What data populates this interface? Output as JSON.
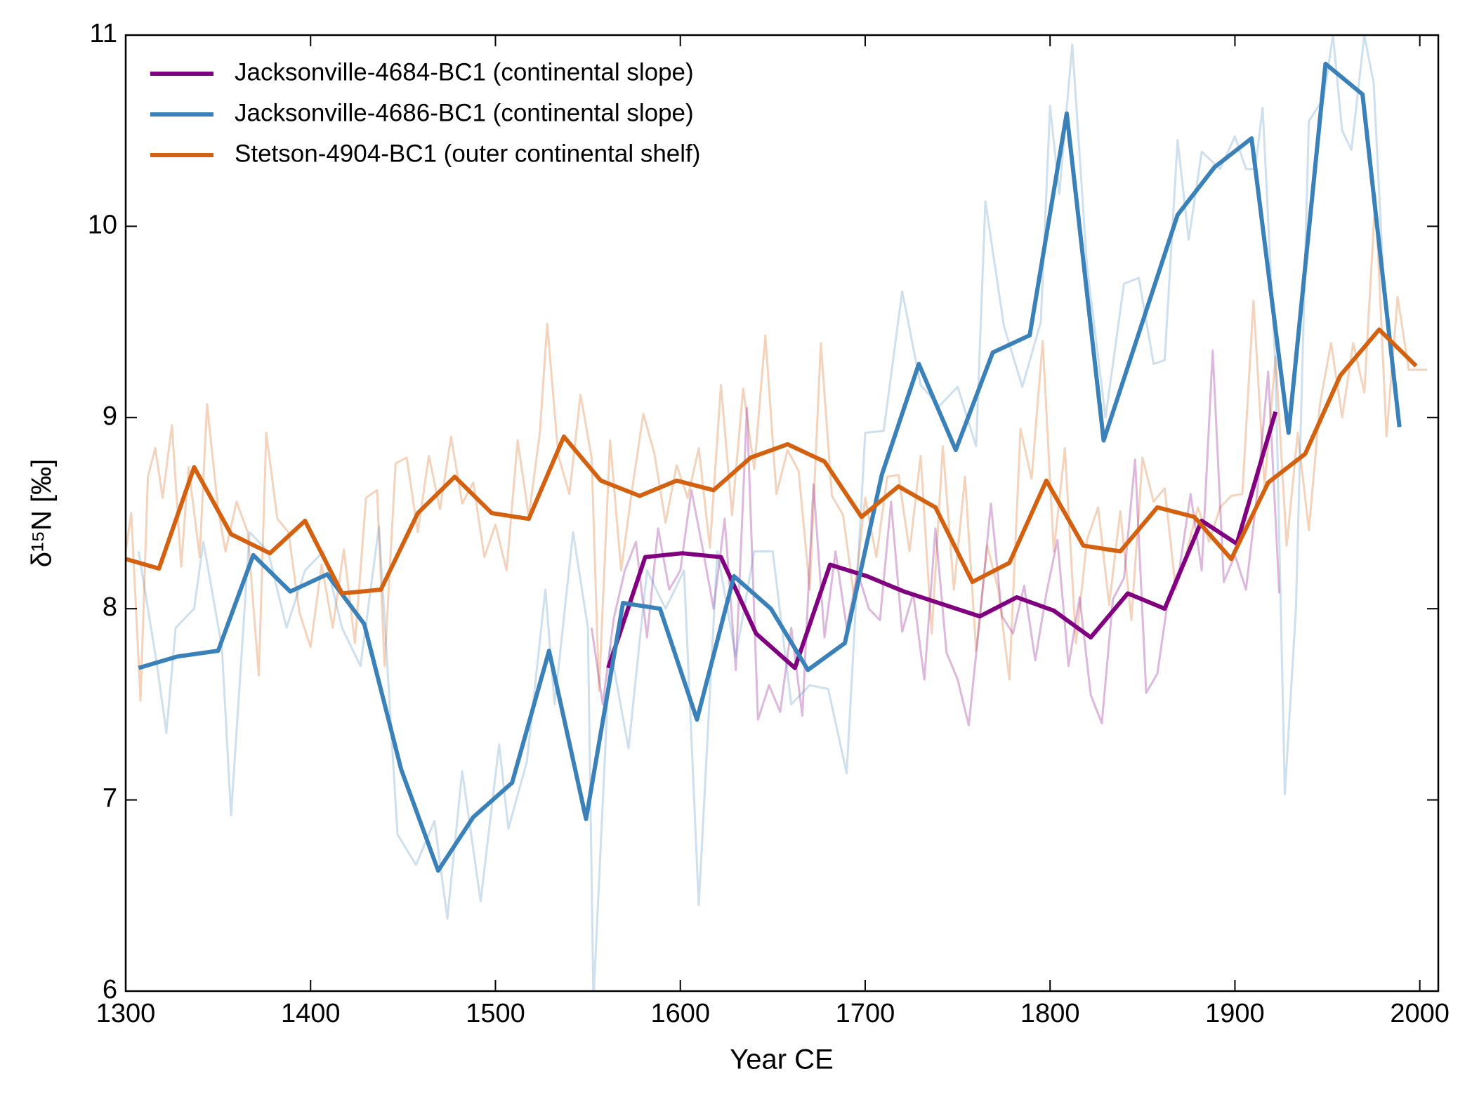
{
  "chart_data": {
    "type": "line",
    "xlabel": "Year CE",
    "ylabel": "δ¹⁵N [‰]",
    "xlim": [
      1300,
      2010
    ],
    "ylim": [
      6,
      11
    ],
    "xticks": [
      1300,
      1400,
      1500,
      1600,
      1700,
      1800,
      1900,
      2000
    ],
    "yticks": [
      6,
      7,
      8,
      9,
      10,
      11
    ],
    "legend": "upper left",
    "series": [
      {
        "name": "Jacksonville-4684-BC1 (continental slope)",
        "color": "#800080",
        "x": [
          1561,
          1581,
          1601,
          1622,
          1641,
          1662,
          1681,
          1701,
          1721,
          1743,
          1762,
          1782,
          1802,
          1822,
          1842,
          1862,
          1882,
          1901,
          1922
        ],
        "values": [
          7.69,
          8.27,
          8.29,
          8.27,
          7.87,
          7.69,
          8.23,
          8.17,
          8.09,
          8.02,
          7.96,
          8.06,
          7.99,
          7.85,
          8.08,
          8.0,
          8.46,
          8.34,
          9.03
        ]
      },
      {
        "name": "Jacksonville-4686-BC1 (continental slope)",
        "color": "#3a81b9",
        "x": [
          1307,
          1328,
          1350,
          1369,
          1389,
          1409,
          1429,
          1449,
          1469,
          1488,
          1509,
          1529,
          1549,
          1569,
          1589,
          1609,
          1629,
          1649,
          1669,
          1689,
          1709,
          1729,
          1749,
          1769,
          1789,
          1809,
          1829,
          1849,
          1869,
          1889,
          1909,
          1929,
          1949,
          1969,
          1989
        ],
        "values": [
          7.69,
          7.75,
          7.78,
          8.28,
          8.09,
          8.18,
          7.92,
          7.16,
          6.63,
          6.91,
          7.09,
          7.78,
          6.9,
          8.03,
          8.0,
          7.42,
          8.17,
          8.0,
          7.68,
          7.82,
          8.7,
          9.28,
          8.83,
          9.34,
          9.43,
          10.59,
          8.88,
          9.47,
          10.06,
          10.31,
          10.46,
          8.92,
          10.85,
          10.69,
          8.95
        ]
      },
      {
        "name": "Stetson-4904-BC1 (outer continental shelf)",
        "color": "#d3610f",
        "x": [
          1300,
          1318,
          1337,
          1357,
          1378,
          1397,
          1417,
          1438,
          1458,
          1478,
          1498,
          1518,
          1537,
          1557,
          1578,
          1598,
          1618,
          1638,
          1658,
          1678,
          1698,
          1718,
          1738,
          1758,
          1778,
          1798,
          1818,
          1838,
          1858,
          1878,
          1898,
          1918,
          1938,
          1957,
          1978,
          1998
        ],
        "values": [
          8.26,
          8.21,
          8.74,
          8.39,
          8.29,
          8.46,
          8.08,
          8.1,
          8.5,
          8.69,
          8.5,
          8.47,
          8.9,
          8.67,
          8.59,
          8.67,
          8.62,
          8.79,
          8.86,
          8.77,
          8.48,
          8.64,
          8.53,
          8.14,
          8.24,
          8.67,
          8.33,
          8.3,
          8.53,
          8.48,
          8.26,
          8.66,
          8.81,
          9.22,
          9.46,
          9.27
        ]
      },
      {
        "color": "#d3610f",
        "alpha": 0.28,
        "x": [
          1300,
          1303,
          1308,
          1312,
          1316,
          1320,
          1325,
          1330,
          1334,
          1340,
          1344,
          1350,
          1354,
          1360,
          1366,
          1372,
          1376,
          1382,
          1388,
          1394,
          1400,
          1406,
          1412,
          1418,
          1424,
          1430,
          1436,
          1440,
          1446,
          1452,
          1458,
          1464,
          1470,
          1476,
          1482,
          1488,
          1494,
          1500,
          1506,
          1512,
          1518,
          1524,
          1528,
          1534,
          1540,
          1546,
          1552,
          1556,
          1562,
          1568,
          1574,
          1580,
          1586,
          1592,
          1598,
          1604,
          1610,
          1616,
          1622,
          1628,
          1634,
          1640,
          1646,
          1652,
          1658,
          1664,
          1670,
          1676,
          1682,
          1688,
          1694,
          1700,
          1706,
          1712,
          1718,
          1724,
          1730,
          1736,
          1742,
          1748,
          1754,
          1760,
          1766,
          1772,
          1778,
          1784,
          1790,
          1796,
          1802,
          1808,
          1814,
          1820,
          1826,
          1832,
          1838,
          1844,
          1850,
          1856,
          1862,
          1868,
          1874,
          1880,
          1886,
          1892,
          1898,
          1904,
          1910,
          1916,
          1922,
          1928,
          1934,
          1940,
          1946,
          1952,
          1958,
          1964,
          1970,
          1976,
          1982,
          1988,
          1994,
          2004
        ],
        "values": [
          8.3,
          8.5,
          7.52,
          8.69,
          8.84,
          8.58,
          8.96,
          8.22,
          8.74,
          8.27,
          9.07,
          8.52,
          8.3,
          8.56,
          8.4,
          7.65,
          8.92,
          8.47,
          8.4,
          7.98,
          7.8,
          8.23,
          7.9,
          8.31,
          7.82,
          8.58,
          8.62,
          7.7,
          8.76,
          8.79,
          8.4,
          8.8,
          8.52,
          8.9,
          8.55,
          8.66,
          8.27,
          8.44,
          8.2,
          8.88,
          8.48,
          8.92,
          9.49,
          8.8,
          8.6,
          9.12,
          8.79,
          7.57,
          8.88,
          8.2,
          8.63,
          9.02,
          8.81,
          8.45,
          8.75,
          8.58,
          8.84,
          8.32,
          9.17,
          8.49,
          9.15,
          8.73,
          9.43,
          8.6,
          8.83,
          8.72,
          8.1,
          9.39,
          8.59,
          8.49,
          8.06,
          8.58,
          8.27,
          8.69,
          8.7,
          8.3,
          8.8,
          7.87,
          8.85,
          8.1,
          8.69,
          7.78,
          8.33,
          8.1,
          7.63,
          8.94,
          8.68,
          9.4,
          8.3,
          8.84,
          7.82,
          8.36,
          8.53,
          8.02,
          8.51,
          7.94,
          8.79,
          8.56,
          8.63,
          8.1,
          8.3,
          8.53,
          8.35,
          8.53,
          8.59,
          8.6,
          9.61,
          8.64,
          9.32,
          8.33,
          8.92,
          8.41,
          9.07,
          9.39,
          9.0,
          9.39,
          9.13,
          10.16,
          8.9,
          9.63,
          9.25,
          9.25
        ]
      },
      {
        "color": "#800080",
        "alpha": 0.28,
        "x": [
          1552,
          1558,
          1564,
          1570,
          1576,
          1582,
          1588,
          1594,
          1600,
          1606,
          1612,
          1618,
          1624,
          1630,
          1636,
          1642,
          1648,
          1654,
          1660,
          1666,
          1672,
          1678,
          1684,
          1690,
          1696,
          1702,
          1708,
          1714,
          1720,
          1726,
          1732,
          1738,
          1744,
          1750,
          1756,
          1762,
          1768,
          1774,
          1780,
          1786,
          1792,
          1798,
          1804,
          1810,
          1816,
          1822,
          1828,
          1834,
          1840,
          1846,
          1852,
          1858,
          1864,
          1870,
          1876,
          1882,
          1888,
          1894,
          1900,
          1906,
          1912,
          1918,
          1924
        ],
        "values": [
          7.9,
          7.5,
          7.95,
          8.2,
          8.35,
          7.85,
          8.42,
          8.1,
          8.2,
          8.62,
          8.32,
          8.0,
          8.47,
          7.68,
          9.05,
          7.42,
          7.6,
          7.46,
          7.9,
          7.44,
          8.65,
          7.85,
          8.3,
          7.9,
          8.19,
          8.0,
          7.94,
          8.56,
          7.88,
          8.08,
          7.63,
          8.42,
          7.77,
          7.63,
          7.39,
          7.95,
          8.55,
          7.96,
          7.87,
          8.12,
          7.73,
          8.08,
          8.36,
          7.7,
          8.06,
          7.55,
          7.4,
          8.05,
          8.16,
          8.78,
          7.56,
          7.66,
          8.06,
          8.21,
          8.6,
          8.2,
          9.35,
          8.14,
          8.28,
          8.1,
          8.6,
          9.24,
          8.08
        ]
      },
      {
        "color": "#3a81b9",
        "alpha": 0.25,
        "x": [
          1307,
          1317,
          1322,
          1327,
          1337,
          1342,
          1352,
          1357,
          1367,
          1377,
          1387,
          1397,
          1407,
          1417,
          1427,
          1437,
          1447,
          1457,
          1467,
          1474,
          1482,
          1492,
          1502,
          1507,
          1517,
          1527,
          1532,
          1542,
          1550,
          1553,
          1562,
          1572,
          1582,
          1592,
          1602,
          1610,
          1620,
          1630,
          1640,
          1650,
          1660,
          1670,
          1680,
          1690,
          1700,
          1710,
          1720,
          1730,
          1740,
          1750,
          1760,
          1765,
          1775,
          1785,
          1795,
          1800,
          1805,
          1812,
          1820,
          1830,
          1840,
          1848,
          1856,
          1862,
          1869,
          1875,
          1882,
          1892,
          1900,
          1906,
          1911,
          1915,
          1922,
          1927,
          1933,
          1940,
          1948,
          1953,
          1958,
          1963,
          1970,
          1975,
          1980
        ],
        "values": [
          8.3,
          7.7,
          7.35,
          7.9,
          8.0,
          8.35,
          7.8,
          6.92,
          8.4,
          8.3,
          7.9,
          8.2,
          8.3,
          7.9,
          7.7,
          8.43,
          6.82,
          6.66,
          6.89,
          6.38,
          7.15,
          6.47,
          7.29,
          6.85,
          7.2,
          8.1,
          7.5,
          8.4,
          7.9,
          5.95,
          7.8,
          7.27,
          8.2,
          8.0,
          8.2,
          6.45,
          8.3,
          7.75,
          8.3,
          8.3,
          7.5,
          7.6,
          7.58,
          7.14,
          8.92,
          8.93,
          9.66,
          9.17,
          9.06,
          9.16,
          8.85,
          10.13,
          9.48,
          9.16,
          9.5,
          10.63,
          10.17,
          10.95,
          9.79,
          9.0,
          9.7,
          9.73,
          9.28,
          9.3,
          10.45,
          9.93,
          10.39,
          10.3,
          10.47,
          10.3,
          10.3,
          10.62,
          9.25,
          7.03,
          8.0,
          10.55,
          10.67,
          11.0,
          10.5,
          10.4,
          11.0,
          10.75,
          9.8
        ]
      }
    ]
  }
}
